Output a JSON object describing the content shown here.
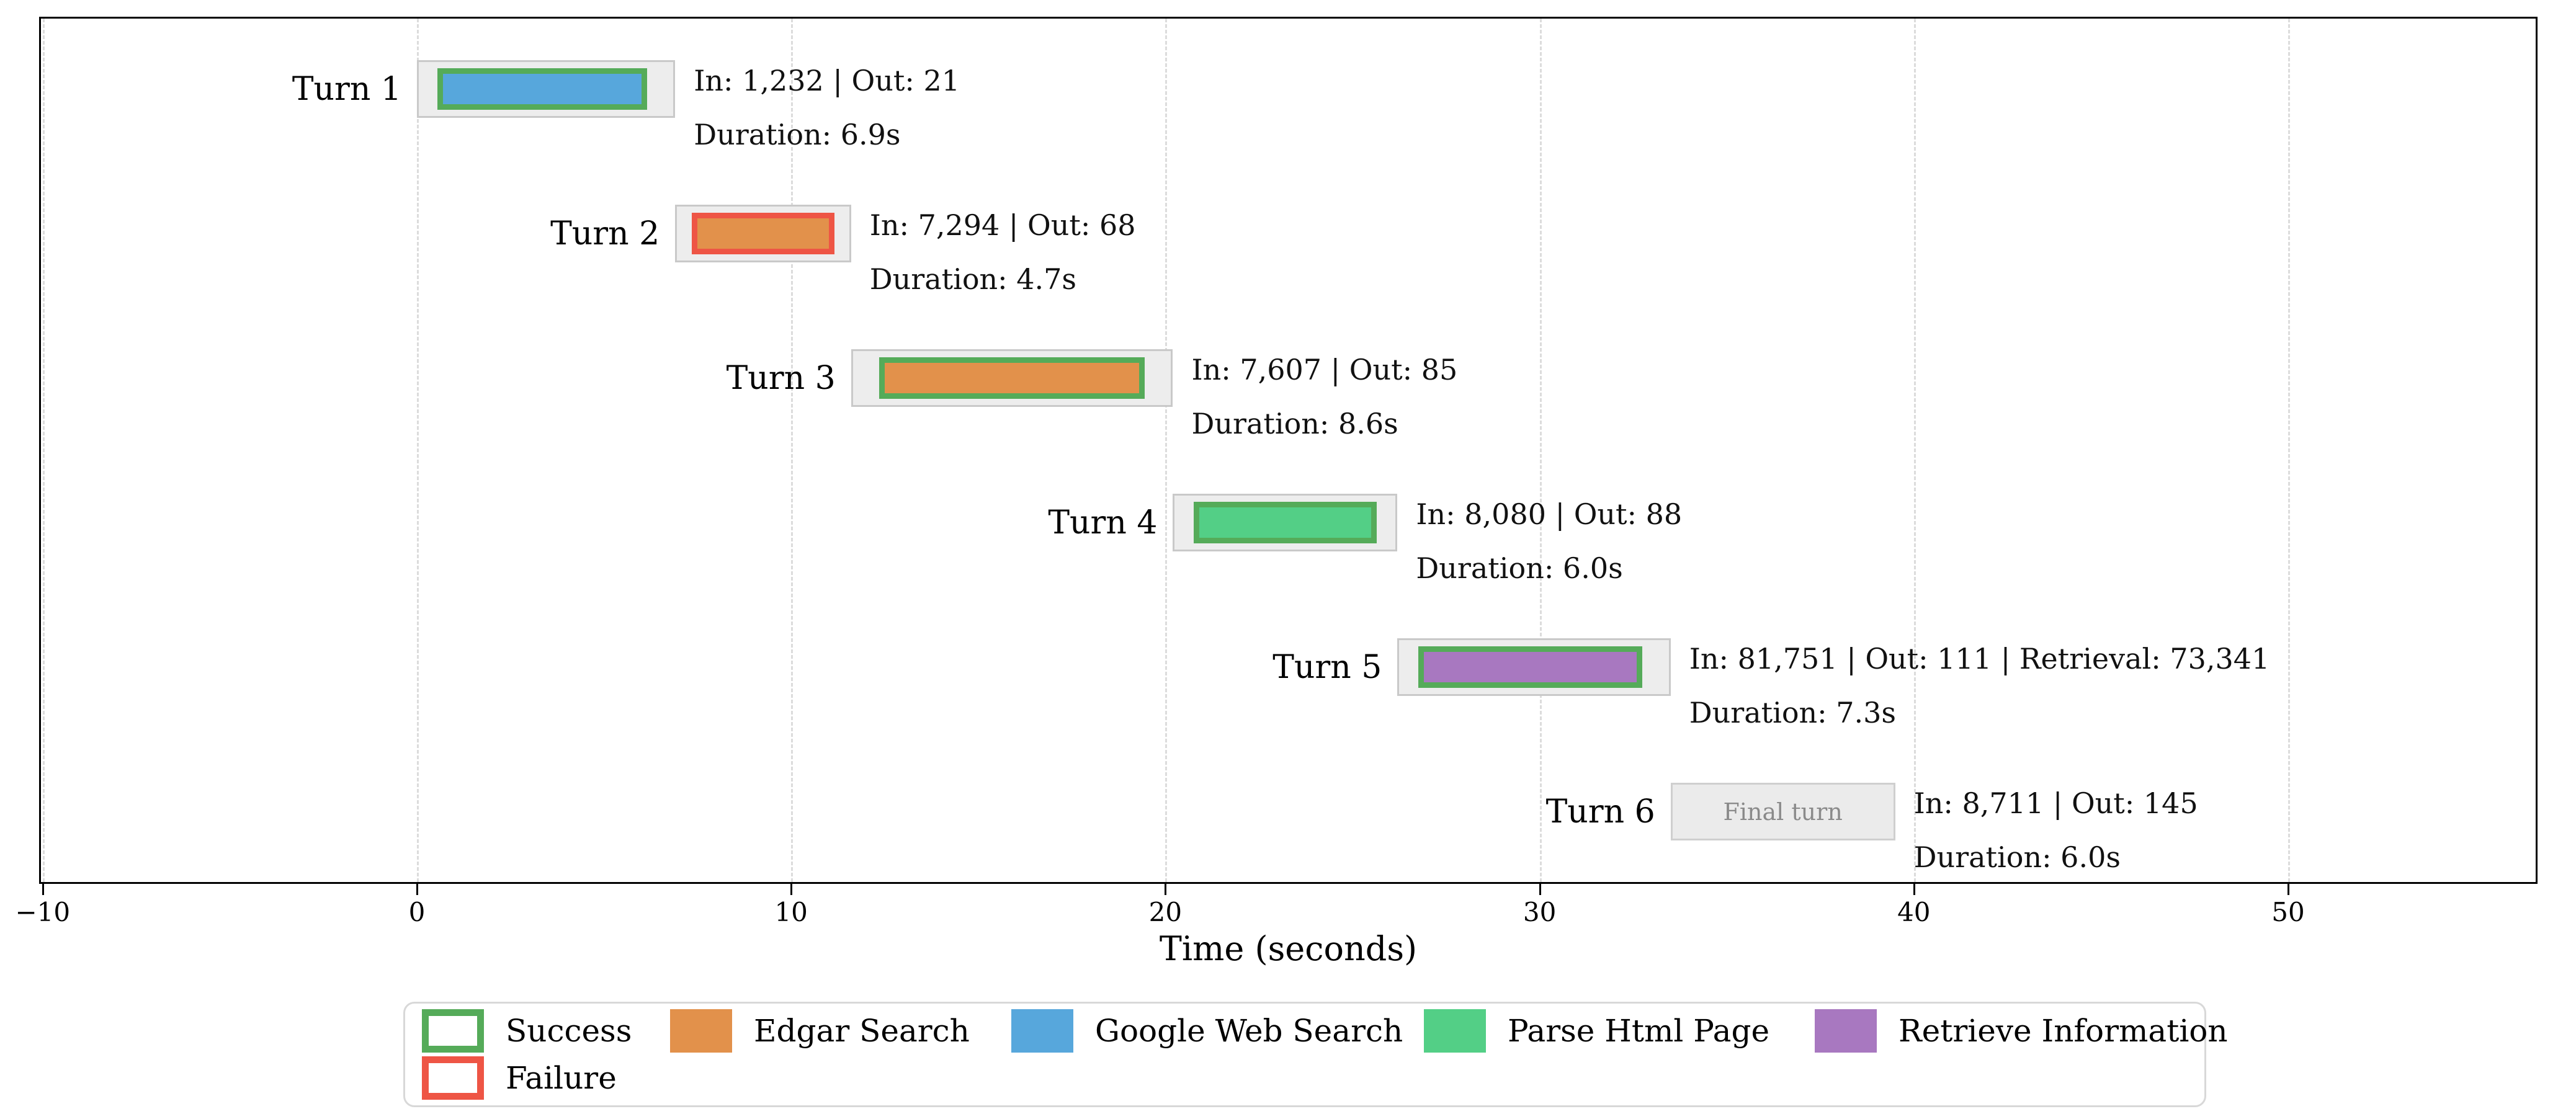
{
  "figure_title": "",
  "colors": {
    "status": {
      "Success": "#55ab59",
      "Failure": "#ee5545"
    },
    "tools": {
      "Edgar Search": "#e2914b",
      "Google Web Search": "#57a7dc",
      "Parse Html Page": "#53cf86",
      "Retrieve Information": "#a878c0"
    },
    "turn_box_fill": "#ededed",
    "turn_box_border": "#c9c9c9",
    "final_turn_fill": "#ebebeb",
    "final_turn_border": "#cfcfcf",
    "final_turn_text": "#8a8a8a",
    "gridline": "#dcdcdc",
    "spine": "#000000"
  },
  "chart_data": {
    "type": "gantt",
    "xlabel": "Time (seconds)",
    "xlim": [
      -10.1,
      56.7
    ],
    "x_ticks": [
      {
        "value": -10,
        "label": "−10"
      },
      {
        "value": 0,
        "label": "0"
      },
      {
        "value": 10,
        "label": "10"
      },
      {
        "value": 20,
        "label": "20"
      },
      {
        "value": 30,
        "label": "30"
      },
      {
        "value": 40,
        "label": "40"
      },
      {
        "value": 50,
        "label": "50"
      }
    ],
    "grid": "vertical-dashed",
    "legend_position": "bottom-center",
    "turns": [
      {
        "label": "Turn 1",
        "start": 0.0,
        "end": 6.9,
        "tool": "Google Web Search",
        "status": "Success",
        "tool_start": 0.55,
        "tool_end": 6.15,
        "in_tokens": "1,232",
        "out_tokens": "21",
        "duration_s": 6.9,
        "annotation_line1": "In: 1,232 | Out: 21",
        "annotation_line2": "Duration: 6.9s"
      },
      {
        "label": "Turn 2",
        "start": 6.9,
        "end": 11.6,
        "tool": "Edgar Search",
        "status": "Failure",
        "tool_start": 7.35,
        "tool_end": 11.15,
        "in_tokens": "7,294",
        "out_tokens": "68",
        "duration_s": 4.7,
        "annotation_line1": "In: 7,294 | Out: 68",
        "annotation_line2": "Duration: 4.7s"
      },
      {
        "label": "Turn 3",
        "start": 11.6,
        "end": 20.2,
        "tool": "Edgar Search",
        "status": "Success",
        "tool_start": 12.35,
        "tool_end": 19.45,
        "in_tokens": "7,607",
        "out_tokens": "85",
        "duration_s": 8.6,
        "annotation_line1": "In: 7,607 | Out: 85",
        "annotation_line2": "Duration: 8.6s"
      },
      {
        "label": "Turn 4",
        "start": 20.2,
        "end": 26.2,
        "tool": "Parse Html Page",
        "status": "Success",
        "tool_start": 20.75,
        "tool_end": 25.65,
        "in_tokens": "8,080",
        "out_tokens": "88",
        "duration_s": 6.0,
        "annotation_line1": "In: 8,080 | Out: 88",
        "annotation_line2": "Duration: 6.0s"
      },
      {
        "label": "Turn 5",
        "start": 26.2,
        "end": 33.5,
        "tool": "Retrieve Information",
        "status": "Success",
        "tool_start": 26.75,
        "tool_end": 32.75,
        "in_tokens": "81,751",
        "out_tokens": "111",
        "retrieval_tokens": "73,341",
        "duration_s": 7.3,
        "annotation_line1": "In: 81,751 | Out: 111 | Retrieval: 73,341",
        "annotation_line2": "Duration: 7.3s"
      },
      {
        "label": "Turn 6",
        "start": 33.5,
        "end": 39.5,
        "tool": null,
        "status": null,
        "final_turn": true,
        "final_turn_text": "Final turn",
        "in_tokens": "8,711",
        "out_tokens": "145",
        "duration_s": 6.0,
        "annotation_line1": "In: 8,711 | Out: 145",
        "annotation_line2": "Duration: 6.0s"
      }
    ],
    "legend": [
      {
        "label": "Success",
        "style": "outline",
        "color_key": "Success"
      },
      {
        "label": "Failure",
        "style": "outline",
        "color_key": "Failure"
      },
      {
        "label": "Edgar Search",
        "style": "fill",
        "color_key": "Edgar Search"
      },
      {
        "label": "Google Web Search",
        "style": "fill",
        "color_key": "Google Web Search"
      },
      {
        "label": "Parse Html Page",
        "style": "fill",
        "color_key": "Parse Html Page"
      },
      {
        "label": "Retrieve Information",
        "style": "fill",
        "color_key": "Retrieve Information"
      }
    ]
  }
}
